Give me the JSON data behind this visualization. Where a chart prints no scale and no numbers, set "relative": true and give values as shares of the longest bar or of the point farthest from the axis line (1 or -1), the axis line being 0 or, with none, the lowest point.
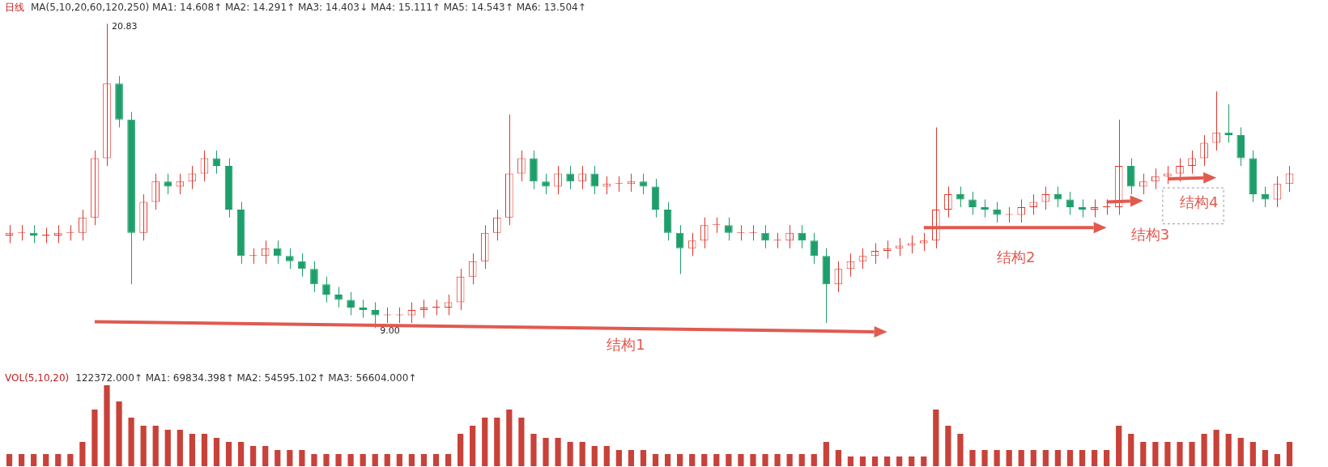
{
  "chart_data": [
    {
      "type": "candlestick",
      "title": "日线",
      "subtitle": "MA(5,10,20,60,120,250) MA1: 14.608↑ MA2: 14.291↑ MA3: 14.403↓ MA4: 15.111↑ MA5: 14.543↑ MA6: 13.504↑",
      "colors": [
        "#e0352b",
        "#e0352b",
        "#1e9e6a",
        "#e0352b",
        "#e0352b",
        "#e0352b",
        "#e0352b",
        "#e0352b",
        "#e0352b",
        "#1e9e6a",
        "#1e9e6a",
        "#e0352b",
        "#e0352b",
        "#1e9e6a",
        "#e0352b",
        "#e0352b",
        "#e0352b",
        "#1e9e6a",
        "#1e9e6a",
        "#1e9e6a",
        "#e0352b",
        "#e0352b",
        "#1e9e6a",
        "#1e9e6a",
        "#1e9e6a",
        "#1e9e6a",
        "#1e9e6a",
        "#1e9e6a",
        "#1e9e6a",
        "#1e9e6a",
        "#1e9e6a",
        "#e0352b",
        "#e0352b",
        "#e0352b",
        "#e0352b",
        "#e0352b",
        "#e0352b",
        "#e0352b",
        "#e0352b",
        "#e0352b",
        "#e0352b",
        "#e0352b",
        "#e0352b",
        "#1e9e6a",
        "#1e9e6a",
        "#e0352b",
        "#1e9e6a",
        "#e0352b",
        "#1e9e6a",
        "#e0352b",
        "#e0352b",
        "#e0352b",
        "#1e9e6a",
        "#1e9e6a",
        "#1e9e6a",
        "#1e9e6a",
        "#e0352b",
        "#e0352b",
        "#e0352b",
        "#1e9e6a",
        "#e0352b",
        "#e0352b",
        "#1e9e6a",
        "#e0352b",
        "#e0352b",
        "#1e9e6a",
        "#1e9e6a",
        "#1e9e6a",
        "#e0352b",
        "#e0352b",
        "#e0352b",
        "#e0352b",
        "#e0352b",
        "#e0352b",
        "#e0352b",
        "#e0352b",
        "#e0352b",
        "#e0352b",
        "#1e9e6a",
        "#1e9e6a",
        "#1e9e6a",
        "#1e9e6a",
        "#e0352b",
        "#e0352b",
        "#e0352b",
        "#e0352b",
        "#1e9e6a",
        "#1e9e6a",
        "#1e9e6a",
        "#e0352b",
        "#e0352b",
        "#e0352b",
        "#1e9e6a",
        "#e0352b",
        "#e0352b",
        "#e0352b",
        "#e0352b",
        "#e0352b",
        "#e0352b",
        "#e0352b",
        "#1e9e6a",
        "#1e9e6a",
        "#1e9e6a",
        "#1e9e6a",
        "#e0352b",
        "#e0352b"
      ],
      "categories": [
        null,
        null,
        null,
        null,
        null,
        null,
        null,
        null,
        null,
        null,
        null,
        null,
        null,
        null,
        null,
        null,
        null,
        null,
        null,
        null,
        null,
        null,
        null,
        null,
        null,
        null,
        null,
        null,
        null,
        null,
        null,
        null,
        null,
        null,
        null,
        null,
        null,
        null,
        null,
        null,
        null,
        null,
        null,
        null,
        null,
        null,
        null,
        null,
        null,
        null,
        null,
        null,
        null,
        null,
        null,
        null,
        null,
        null,
        null,
        null,
        null,
        null,
        null,
        null,
        null,
        null,
        null,
        null,
        null,
        null,
        null,
        null,
        null,
        null,
        null,
        null,
        null,
        null,
        null,
        null,
        null,
        null,
        null,
        null,
        null,
        null,
        null,
        null,
        null,
        null,
        null,
        null,
        null,
        null,
        null,
        null,
        null,
        null,
        null,
        null,
        null,
        null,
        null,
        null,
        null,
        null
      ],
      "ohlc": [
        [
          12.6,
          13.0,
          12.3,
          12.7
        ],
        [
          12.7,
          13.0,
          12.4,
          12.7
        ],
        [
          12.7,
          13.0,
          12.3,
          12.6
        ],
        [
          12.6,
          12.9,
          12.3,
          12.6
        ],
        [
          12.6,
          13.0,
          12.3,
          12.7
        ],
        [
          12.7,
          13.0,
          12.4,
          12.7
        ],
        [
          12.7,
          13.6,
          12.4,
          13.3
        ],
        [
          13.3,
          15.9,
          13.0,
          15.6
        ],
        [
          15.6,
          20.83,
          15.3,
          18.5
        ],
        [
          18.5,
          18.8,
          16.8,
          17.1
        ],
        [
          17.1,
          17.4,
          10.7,
          12.7
        ],
        [
          12.7,
          14.2,
          12.4,
          13.9
        ],
        [
          13.9,
          15.0,
          13.6,
          14.7
        ],
        [
          14.7,
          15.0,
          14.2,
          14.5
        ],
        [
          14.5,
          15.0,
          14.2,
          14.7
        ],
        [
          14.7,
          15.3,
          14.4,
          15.0
        ],
        [
          15.0,
          15.9,
          14.7,
          15.6
        ],
        [
          15.6,
          15.9,
          15.0,
          15.3
        ],
        [
          15.3,
          15.6,
          13.3,
          13.6
        ],
        [
          13.6,
          13.9,
          11.5,
          11.8
        ],
        [
          11.8,
          12.1,
          11.5,
          11.8
        ],
        [
          11.8,
          12.4,
          11.5,
          12.1
        ],
        [
          12.1,
          12.4,
          11.5,
          11.8
        ],
        [
          11.8,
          12.1,
          11.3,
          11.6
        ],
        [
          11.6,
          11.9,
          11.0,
          11.3
        ],
        [
          11.3,
          11.6,
          10.4,
          10.7
        ],
        [
          10.7,
          11.0,
          10.0,
          10.3
        ],
        [
          10.3,
          10.6,
          9.8,
          10.1
        ],
        [
          10.1,
          10.4,
          9.5,
          9.8
        ],
        [
          9.8,
          10.1,
          9.4,
          9.7
        ],
        [
          9.7,
          10.0,
          9.0,
          9.5
        ],
        [
          9.5,
          9.8,
          9.2,
          9.5
        ],
        [
          9.5,
          9.8,
          9.2,
          9.5
        ],
        [
          9.5,
          10.0,
          9.2,
          9.7
        ],
        [
          9.7,
          10.1,
          9.4,
          9.8
        ],
        [
          9.8,
          10.1,
          9.5,
          9.8
        ],
        [
          9.8,
          10.3,
          9.5,
          10.0
        ],
        [
          10.0,
          11.3,
          9.7,
          11.0
        ],
        [
          11.0,
          11.9,
          10.7,
          11.6
        ],
        [
          11.6,
          13.0,
          11.3,
          12.7
        ],
        [
          12.7,
          13.6,
          12.4,
          13.3
        ],
        [
          13.3,
          17.3,
          13.0,
          15.0
        ],
        [
          15.0,
          15.9,
          14.7,
          15.6
        ],
        [
          15.6,
          15.9,
          14.4,
          14.7
        ],
        [
          14.7,
          15.0,
          14.2,
          14.5
        ],
        [
          14.5,
          15.3,
          14.2,
          15.0
        ],
        [
          15.0,
          15.3,
          14.4,
          14.7
        ],
        [
          14.7,
          15.3,
          14.4,
          15.0
        ],
        [
          15.0,
          15.3,
          14.2,
          14.5
        ],
        [
          14.5,
          14.9,
          14.2,
          14.6
        ],
        [
          14.6,
          14.9,
          14.3,
          14.6
        ],
        [
          14.6,
          15.0,
          14.3,
          14.7
        ],
        [
          14.7,
          15.0,
          14.2,
          14.5
        ],
        [
          14.5,
          14.8,
          13.3,
          13.6
        ],
        [
          13.6,
          13.9,
          12.4,
          12.7
        ],
        [
          12.7,
          13.0,
          11.1,
          12.1
        ],
        [
          12.1,
          12.7,
          11.8,
          12.4
        ],
        [
          12.4,
          13.3,
          12.1,
          13.0
        ],
        [
          13.0,
          13.3,
          12.7,
          13.0
        ],
        [
          13.0,
          13.3,
          12.4,
          12.7
        ],
        [
          12.7,
          13.0,
          12.4,
          12.7
        ],
        [
          12.7,
          13.0,
          12.4,
          12.7
        ],
        [
          12.7,
          13.0,
          12.1,
          12.4
        ],
        [
          12.4,
          12.7,
          12.1,
          12.4
        ],
        [
          12.4,
          13.0,
          12.1,
          12.7
        ],
        [
          12.7,
          13.0,
          12.1,
          12.4
        ],
        [
          12.4,
          12.7,
          11.5,
          11.8
        ],
        [
          11.8,
          12.1,
          9.2,
          10.7
        ],
        [
          10.7,
          11.6,
          10.4,
          11.3
        ],
        [
          11.3,
          11.9,
          11.0,
          11.6
        ],
        [
          11.6,
          12.1,
          11.3,
          11.8
        ],
        [
          11.8,
          12.3,
          11.5,
          12.0
        ],
        [
          12.0,
          12.4,
          11.7,
          12.1
        ],
        [
          12.1,
          12.5,
          11.8,
          12.2
        ],
        [
          12.2,
          12.6,
          11.9,
          12.3
        ],
        [
          12.3,
          12.7,
          12.0,
          12.4
        ],
        [
          12.4,
          16.8,
          12.1,
          13.6
        ],
        [
          13.6,
          14.5,
          13.3,
          14.2
        ],
        [
          14.2,
          14.5,
          13.7,
          14.0
        ],
        [
          14.0,
          14.3,
          13.4,
          13.7
        ],
        [
          13.7,
          14.0,
          13.3,
          13.6
        ],
        [
          13.6,
          13.9,
          13.1,
          13.4
        ],
        [
          13.4,
          13.7,
          13.1,
          13.4
        ],
        [
          13.4,
          14.0,
          13.1,
          13.7
        ],
        [
          13.7,
          14.2,
          13.4,
          13.9
        ],
        [
          13.9,
          14.5,
          13.6,
          14.2
        ],
        [
          14.2,
          14.5,
          13.7,
          14.0
        ],
        [
          14.0,
          14.3,
          13.4,
          13.7
        ],
        [
          13.7,
          14.0,
          13.3,
          13.6
        ],
        [
          13.6,
          14.0,
          13.3,
          13.7
        ],
        [
          13.7,
          14.0,
          13.4,
          13.7
        ],
        [
          13.7,
          17.1,
          13.4,
          15.3
        ],
        [
          15.3,
          15.6,
          14.2,
          14.5
        ],
        [
          14.5,
          15.0,
          14.2,
          14.7
        ],
        [
          14.7,
          15.2,
          14.4,
          14.9
        ],
        [
          14.9,
          15.3,
          14.6,
          15.0
        ],
        [
          15.0,
          15.6,
          14.7,
          15.3
        ],
        [
          15.3,
          15.9,
          15.0,
          15.6
        ],
        [
          15.6,
          16.5,
          15.3,
          16.2
        ],
        [
          16.2,
          18.2,
          15.9,
          16.6
        ],
        [
          16.6,
          17.7,
          16.2,
          16.5
        ],
        [
          16.5,
          16.8,
          15.3,
          15.6
        ],
        [
          15.6,
          15.9,
          13.9,
          14.2
        ],
        [
          14.2,
          14.5,
          13.7,
          14.0
        ],
        [
          14.0,
          14.9,
          13.7,
          14.6
        ],
        [
          14.6,
          15.3,
          14.3,
          15.0
        ]
      ],
      "annotations": [
        "20.83",
        "9.00",
        "结构1",
        "结构2",
        "结构3",
        "结构4"
      ]
    },
    {
      "type": "bar",
      "title": "VOL(5,10,20)",
      "subtitle": "122372.000↑ MA1: 69834.398↑ MA2: 54595.102↑ MA3: 56604.000↑",
      "color": "#c8423a",
      "relative": true,
      "categories": [
        null,
        null,
        null,
        null,
        null,
        null,
        null,
        null,
        null,
        null,
        null,
        null,
        null,
        null,
        null,
        null,
        null,
        null,
        null,
        null,
        null,
        null,
        null,
        null,
        null,
        null,
        null,
        null,
        null,
        null,
        null,
        null,
        null,
        null,
        null,
        null,
        null,
        null,
        null,
        null,
        null,
        null,
        null,
        null,
        null,
        null,
        null,
        null,
        null,
        null,
        null,
        null,
        null,
        null,
        null,
        null,
        null,
        null,
        null,
        null,
        null,
        null,
        null,
        null,
        null,
        null,
        null,
        null,
        null,
        null,
        null,
        null,
        null,
        null,
        null,
        null,
        null,
        null,
        null,
        null,
        null,
        null,
        null,
        null,
        null,
        null,
        null,
        null,
        null,
        null,
        null,
        null,
        null,
        null,
        null,
        null,
        null,
        null,
        null,
        null,
        null,
        null,
        null,
        null,
        null,
        null
      ],
      "values": [
        0.15,
        0.15,
        0.15,
        0.15,
        0.15,
        0.15,
        0.3,
        0.7,
        1,
        0.8,
        0.6,
        0.5,
        0.5,
        0.45,
        0.45,
        0.4,
        0.4,
        0.35,
        0.3,
        0.3,
        0.25,
        0.25,
        0.2,
        0.2,
        0.2,
        0.15,
        0.15,
        0.15,
        0.15,
        0.15,
        0.15,
        0.15,
        0.15,
        0.15,
        0.15,
        0.15,
        0.15,
        0.4,
        0.5,
        0.6,
        0.6,
        0.7,
        0.6,
        0.4,
        0.35,
        0.35,
        0.3,
        0.3,
        0.25,
        0.25,
        0.2,
        0.2,
        0.2,
        0.15,
        0.15,
        0.15,
        0.15,
        0.15,
        0.15,
        0.15,
        0.15,
        0.15,
        0.15,
        0.15,
        0.15,
        0.15,
        0.15,
        0.3,
        0.2,
        0.12,
        0.12,
        0.12,
        0.12,
        0.12,
        0.12,
        0.12,
        0.7,
        0.5,
        0.4,
        0.2,
        0.2,
        0.2,
        0.2,
        0.2,
        0.2,
        0.2,
        0.2,
        0.2,
        0.2,
        0.2,
        0.2,
        0.5,
        0.4,
        0.3,
        0.3,
        0.3,
        0.3,
        0.3,
        0.4,
        0.45,
        0.4,
        0.35,
        0.3,
        0.2,
        0.15,
        0.3
      ]
    }
  ]
}
